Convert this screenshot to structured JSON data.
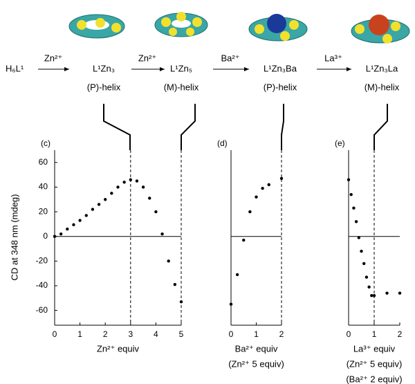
{
  "scheme": {
    "start": "H₆L¹",
    "steps": [
      {
        "reagent": "Zn²⁺",
        "product": "L¹Zn₃",
        "helix": "(P)-helix"
      },
      {
        "reagent": "Zn²⁺",
        "product": "L¹Zn₅",
        "helix": "(M)-helix"
      },
      {
        "reagent": "Ba²⁺",
        "product": "L¹Zn₃Ba",
        "helix": "(P)-helix"
      },
      {
        "reagent": "La³⁺",
        "product": "L¹Zn₃La",
        "helix": "(M)-helix"
      }
    ]
  },
  "chart_data": [
    {
      "type": "scatter",
      "panel": "(c)",
      "ylabel": "CD at 348 nm (mdeg)",
      "xlabel": [
        "Zn²⁺ equiv"
      ],
      "x": [
        0,
        0.25,
        0.5,
        0.75,
        1,
        1.25,
        1.5,
        1.75,
        2,
        2.25,
        2.5,
        2.75,
        3,
        3.25,
        3.5,
        3.75,
        4,
        4.25,
        4.5,
        4.75,
        5
      ],
      "values": [
        0,
        2,
        6,
        9.5,
        13,
        17,
        22,
        26,
        30,
        35,
        40,
        44,
        46,
        45,
        40,
        31,
        20,
        2,
        -20,
        -39,
        -53
      ],
      "xlim": [
        0,
        5
      ],
      "xticks": [
        0,
        1,
        2,
        3,
        4,
        5
      ],
      "ylim": [
        -72,
        70
      ],
      "yticks": [
        -60,
        -40,
        -20,
        0,
        20,
        40,
        60
      ],
      "vlines": [
        3,
        5
      ],
      "color": "#000000"
    },
    {
      "type": "scatter",
      "panel": "(d)",
      "xlabel": [
        "Ba²⁺ equiv",
        "(Zn²⁺ 5 equiv)"
      ],
      "x": [
        0,
        0.25,
        0.5,
        0.75,
        1,
        1.25,
        1.5,
        2
      ],
      "values": [
        -55,
        -31,
        -3,
        20,
        32,
        39,
        42,
        47
      ],
      "xlim": [
        0,
        2
      ],
      "xticks": [
        0,
        1,
        2
      ],
      "ylim": [
        -72,
        70
      ],
      "vlines": [
        2
      ],
      "color": "#000000"
    },
    {
      "type": "scatter",
      "panel": "(e)",
      "xlabel": [
        "La³⁺ equiv",
        "(Zn²⁺ 5 equiv)",
        "(Ba²⁺ 2 equiv)"
      ],
      "x": [
        0,
        0.1,
        0.2,
        0.3,
        0.4,
        0.5,
        0.6,
        0.7,
        0.8,
        0.9,
        1,
        1.5,
        2
      ],
      "values": [
        46,
        34,
        23,
        12,
        -1,
        -12,
        -22,
        -33,
        -41,
        -48,
        -48,
        -46,
        -46
      ],
      "xlim": [
        0,
        2
      ],
      "xticks": [
        0,
        1,
        2
      ],
      "ylim": [
        -72,
        70
      ],
      "vlines": [
        1
      ],
      "color": "#000000"
    }
  ]
}
